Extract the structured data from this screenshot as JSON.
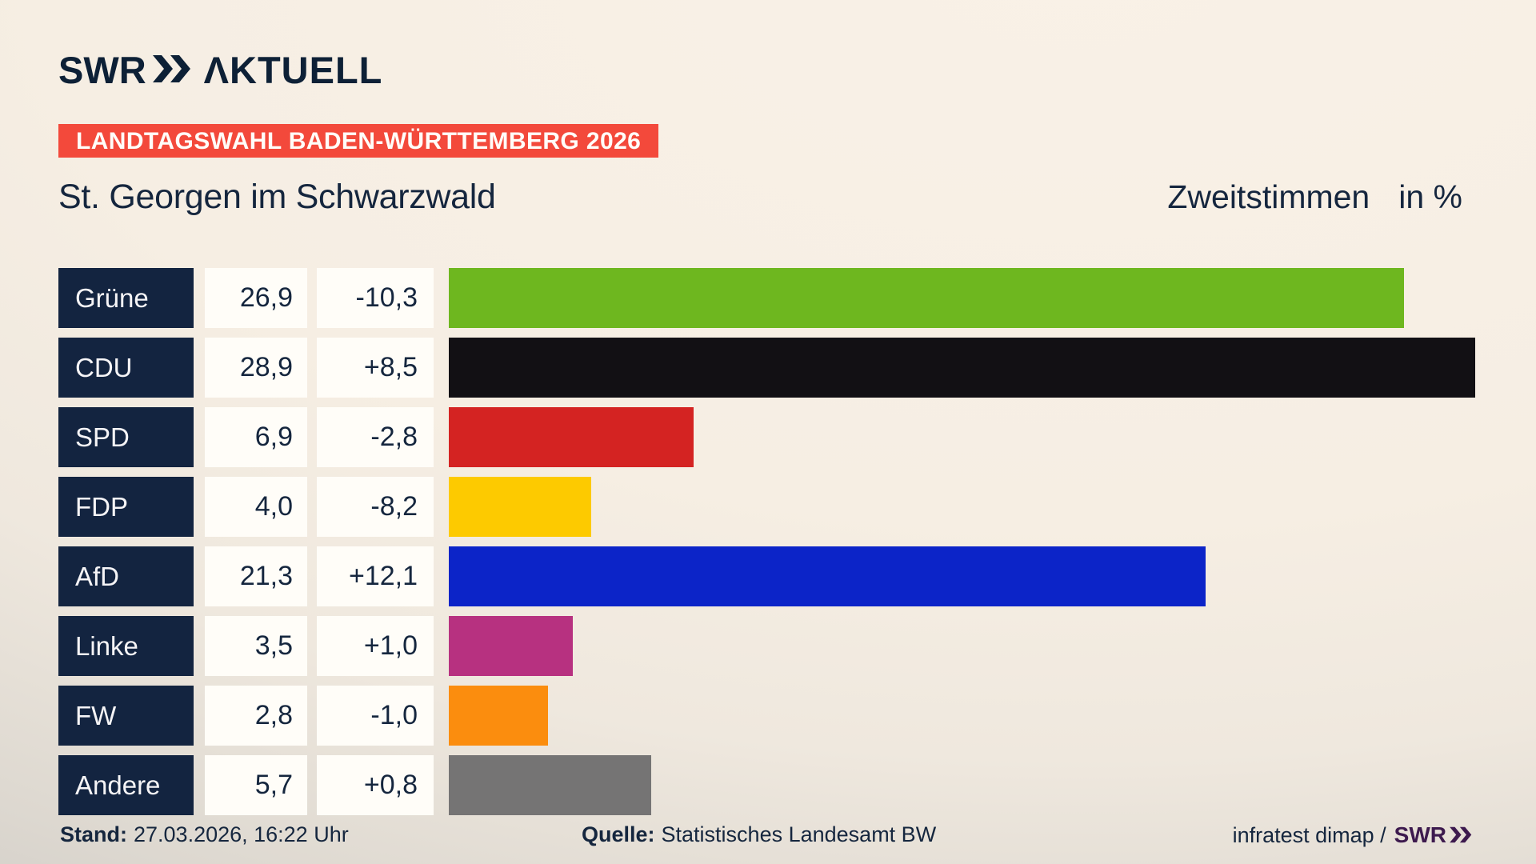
{
  "header": {
    "logo": {
      "swr": "SWR",
      "aktuell": "ΛKTUELL"
    },
    "banner": "LANDTAGSWAHL BADEN-WÜRTTEMBERG 2026",
    "title": "St. Georgen im Schwarzwald",
    "vote_type": "Zweitstimmen",
    "unit": "in %"
  },
  "chart_data": {
    "type": "bar",
    "orientation": "horizontal",
    "title": "Zweitstimmen in % – St. Georgen im Schwarzwald, Landtagswahl Baden-Württemberg 2026",
    "unit": "%",
    "scale_max": 28.9,
    "categories": [
      "Grüne",
      "CDU",
      "SPD",
      "FDP",
      "AfD",
      "Linke",
      "FW",
      "Andere"
    ],
    "values": [
      26.9,
      28.9,
      6.9,
      4.0,
      21.3,
      3.5,
      2.8,
      5.7
    ],
    "changes": [
      -10.3,
      8.5,
      -2.8,
      -8.2,
      12.1,
      1.0,
      -1.0,
      0.8
    ],
    "parties": [
      {
        "name": "Grüne",
        "value": 26.9,
        "value_label": "26,9",
        "change_label": "-10,3",
        "color": "#6eb71f"
      },
      {
        "name": "CDU",
        "value": 28.9,
        "value_label": "28,9",
        "change_label": "+8,5",
        "color": "#121014"
      },
      {
        "name": "SPD",
        "value": 6.9,
        "value_label": "6,9",
        "change_label": "-2,8",
        "color": "#d42322"
      },
      {
        "name": "FDP",
        "value": 4.0,
        "value_label": "4,0",
        "change_label": "-8,2",
        "color": "#fdca00"
      },
      {
        "name": "AfD",
        "value": 21.3,
        "value_label": "21,3",
        "change_label": "+12,1",
        "color": "#0c24c8"
      },
      {
        "name": "Linke",
        "value": 3.5,
        "value_label": "3,5",
        "change_label": "+1,0",
        "color": "#b73180"
      },
      {
        "name": "FW",
        "value": 2.8,
        "value_label": "2,8",
        "change_label": "-1,0",
        "color": "#fb8d0e"
      },
      {
        "name": "Andere",
        "value": 5.7,
        "value_label": "5,7",
        "change_label": "+0,8",
        "color": "#757474"
      }
    ]
  },
  "footer": {
    "stand_label": "Stand:",
    "stand_value": "27.03.2026, 16:22 Uhr",
    "quelle_label": "Quelle:",
    "quelle_value": "Statistisches Landesamt BW",
    "credit_text": "infratest dimap /",
    "credit_logo": "SWR"
  },
  "colors": {
    "background_light": "#f8f0e6",
    "background_dark_corner": "#c7c4c0",
    "banner_red": "#f3493b",
    "navy": "#132440",
    "box_white": "#fffdf8",
    "credit_purple": "#3d1a4e"
  }
}
